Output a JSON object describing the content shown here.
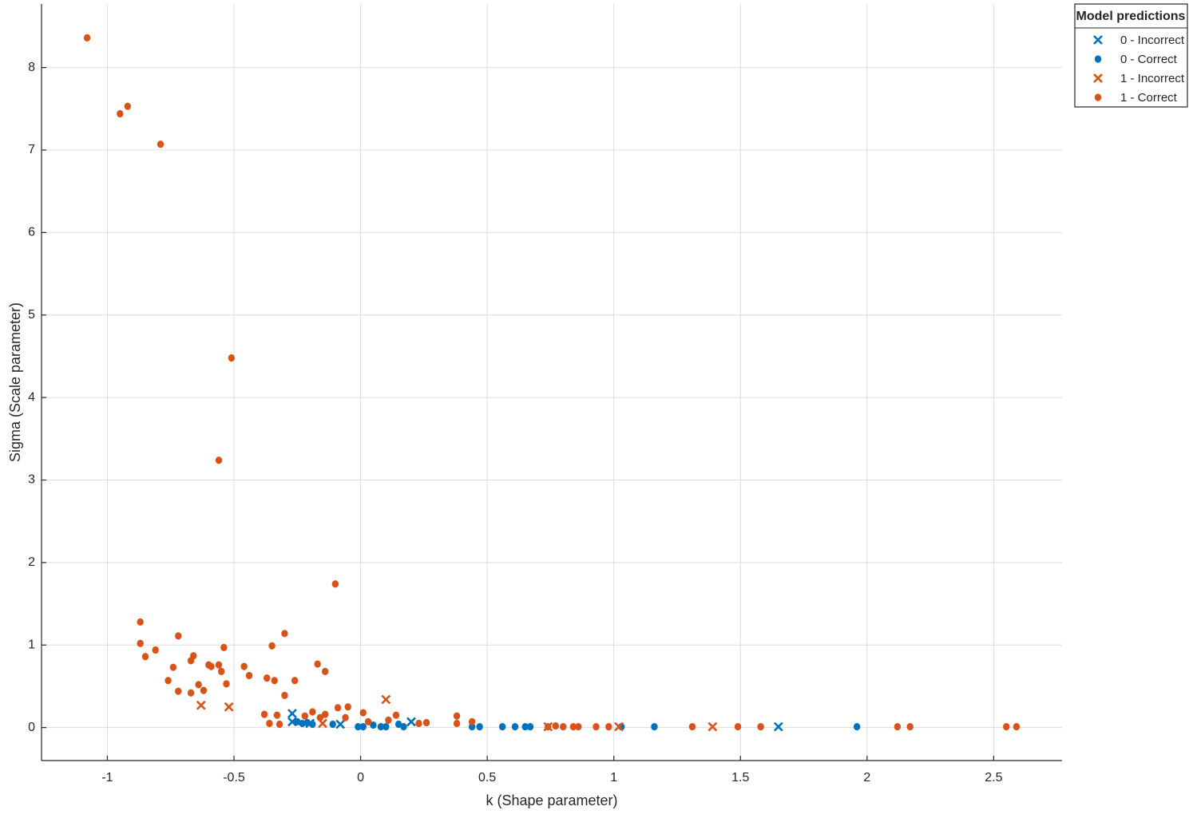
{
  "chart_data": {
    "type": "scatter",
    "x_label": "k (Shape parameter)",
    "y_label": "Sigma (Scale parameter)",
    "xlim": [
      -1.26,
      2.77
    ],
    "ylim": [
      -0.4,
      8.77
    ],
    "xticks": [
      -1,
      -0.5,
      0,
      0.5,
      1,
      1.5,
      2,
      2.5
    ],
    "yticks": [
      0,
      1,
      2,
      3,
      4,
      5,
      6,
      7,
      8
    ],
    "grid": true,
    "legend_title": "Model predictions",
    "legend_position": "outside-top-right",
    "series": [
      {
        "name": "0 - Incorrect",
        "color": "#0072bd",
        "marker": "x",
        "x": [
          -0.27,
          -0.27,
          -0.2,
          -0.08,
          0.2,
          1.65
        ],
        "values": [
          0.17,
          0.07,
          0.05,
          0.04,
          0.07,
          0.01
        ]
      },
      {
        "name": "0 - Correct",
        "color": "#0072bd",
        "marker": "o",
        "x": [
          -0.25,
          -0.23,
          -0.21,
          -0.19,
          -0.11,
          -0.01,
          0.01,
          0.05,
          0.08,
          0.1,
          0.15,
          0.17,
          0.44,
          0.47,
          0.56,
          0.61,
          0.65,
          0.67,
          1.03,
          1.16,
          1.96
        ],
        "values": [
          0.07,
          0.05,
          0.06,
          0.04,
          0.04,
          0.01,
          0.01,
          0.03,
          0.01,
          0.01,
          0.04,
          0.01,
          0.01,
          0.01,
          0.01,
          0.01,
          0.01,
          0.01,
          0.01,
          0.01,
          0.01
        ]
      },
      {
        "name": "1 - Incorrect",
        "color": "#d95319",
        "marker": "x",
        "x": [
          -0.63,
          -0.52,
          0.1,
          -0.15,
          0.74,
          1.02,
          1.39
        ],
        "values": [
          0.27,
          0.25,
          0.34,
          0.05,
          0.01,
          0.01,
          0.01
        ]
      },
      {
        "name": "1 - Correct",
        "color": "#d95319",
        "marker": "o",
        "x": [
          -1.08,
          -0.95,
          -0.92,
          -0.79,
          -0.51,
          -0.56,
          -0.1,
          -0.87,
          -0.87,
          -0.85,
          -0.81,
          -0.72,
          -0.76,
          -0.74,
          -0.72,
          -0.67,
          -0.66,
          -0.67,
          -0.64,
          -0.62,
          -0.6,
          -0.59,
          -0.56,
          -0.55,
          -0.53,
          -0.54,
          -0.46,
          -0.44,
          -0.37,
          -0.34,
          -0.35,
          -0.3,
          -0.3,
          -0.26,
          -0.17,
          -0.14,
          -0.38,
          -0.33,
          -0.36,
          -0.32,
          -0.22,
          -0.19,
          -0.16,
          -0.14,
          -0.09,
          -0.05,
          -0.06,
          0.01,
          0.03,
          0.11,
          0.14,
          0.23,
          0.26,
          0.38,
          0.38,
          0.44,
          0.74,
          0.77,
          0.8,
          0.84,
          0.86,
          0.93,
          0.98,
          1.31,
          1.49,
          1.58,
          2.12,
          2.17,
          2.55,
          2.59
        ],
        "values": [
          8.36,
          7.44,
          7.53,
          7.07,
          4.48,
          3.24,
          1.74,
          1.28,
          1.02,
          0.86,
          0.94,
          1.11,
          0.57,
          0.73,
          0.44,
          0.81,
          0.87,
          0.42,
          0.52,
          0.45,
          0.76,
          0.74,
          0.76,
          0.68,
          0.53,
          0.97,
          0.74,
          0.63,
          0.6,
          0.57,
          0.99,
          1.14,
          0.39,
          0.57,
          0.77,
          0.68,
          0.16,
          0.15,
          0.05,
          0.04,
          0.14,
          0.19,
          0.12,
          0.16,
          0.24,
          0.25,
          0.12,
          0.18,
          0.07,
          0.09,
          0.15,
          0.05,
          0.06,
          0.14,
          0.05,
          0.07,
          0.01,
          0.02,
          0.01,
          0.01,
          0.01,
          0.01,
          0.01,
          0.01,
          0.01,
          0.01,
          0.01,
          0.01,
          0.01,
          0.01
        ]
      }
    ]
  }
}
